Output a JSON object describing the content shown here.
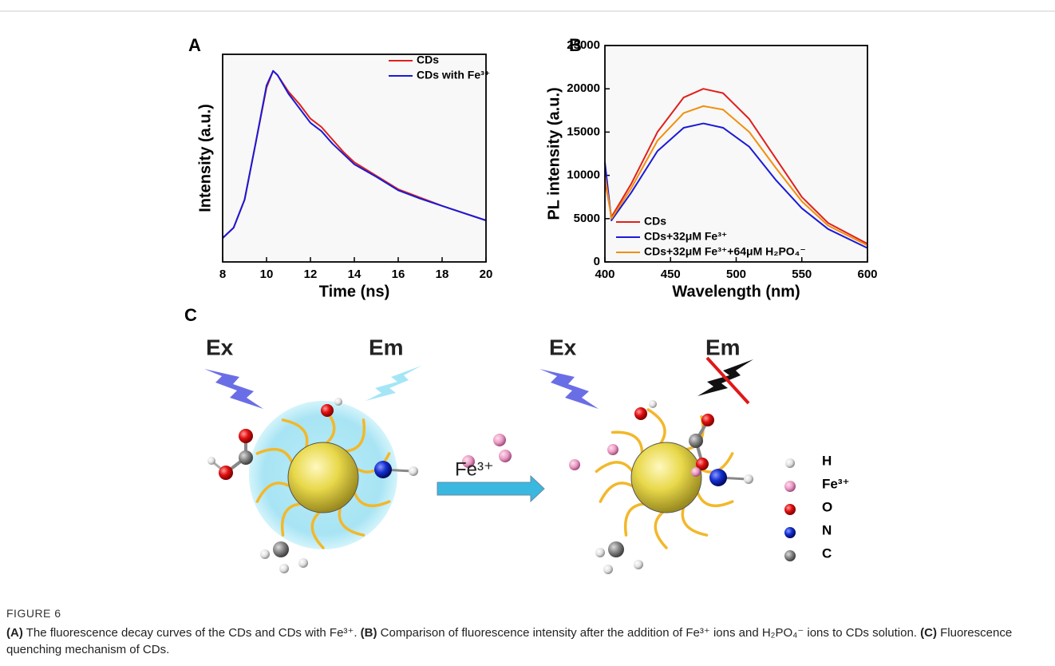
{
  "chart_data": [
    {
      "type": "line",
      "panel": "A",
      "x_label": "Time (ns)",
      "y_label": "Intensity (a.u.)",
      "xlim": [
        8,
        20
      ],
      "xticks": [
        8,
        10,
        12,
        14,
        16,
        18,
        20
      ],
      "ylim": [
        0,
        1
      ],
      "legend": "upper right",
      "x": [
        8,
        8.5,
        9,
        9.5,
        10,
        10.3,
        10.5,
        11,
        11.5,
        12,
        12.5,
        13,
        13.5,
        14,
        15,
        16,
        17,
        18,
        19,
        20
      ],
      "series": [
        {
          "name": "CDs",
          "color": "#e0201b",
          "values": [
            0.115,
            0.165,
            0.3,
            0.57,
            0.84,
            0.92,
            0.9,
            0.82,
            0.76,
            0.69,
            0.65,
            0.59,
            0.53,
            0.48,
            0.415,
            0.35,
            0.31,
            0.27,
            0.235,
            0.2
          ]
        },
        {
          "name": "CDs with Fe³⁺",
          "color": "#1a1ad8",
          "values": [
            0.115,
            0.165,
            0.3,
            0.57,
            0.85,
            0.92,
            0.9,
            0.81,
            0.74,
            0.67,
            0.63,
            0.57,
            0.52,
            0.47,
            0.41,
            0.345,
            0.305,
            0.27,
            0.235,
            0.2
          ]
        }
      ]
    },
    {
      "type": "line",
      "panel": "B",
      "x_label": "Wavelength (nm)",
      "y_label": "PL intensity (a.u.)",
      "xlim": [
        400,
        600
      ],
      "xticks": [
        400,
        450,
        500,
        550,
        600
      ],
      "ylim": [
        0,
        25000
      ],
      "yticks": [
        0,
        5000,
        10000,
        15000,
        20000,
        25000
      ],
      "legend": "lower center",
      "x": [
        400,
        405,
        420,
        440,
        460,
        475,
        490,
        510,
        530,
        550,
        570,
        600
      ],
      "series": [
        {
          "name": "CDs",
          "color": "#e0201b",
          "values": [
            9500,
            5200,
            9000,
            15000,
            19000,
            20000,
            19500,
            16500,
            12000,
            7500,
            4500,
            2100
          ]
        },
        {
          "name": "CDs+32μM Fe³⁺",
          "color": "#1a1ad8",
          "values": [
            11500,
            4800,
            8000,
            12800,
            15500,
            16000,
            15500,
            13300,
            9500,
            6200,
            3800,
            1600
          ]
        },
        {
          "name": "CDs+32μM Fe³⁺+64μM H₂PO₄⁻",
          "color": "#f0900f",
          "values": [
            10000,
            5000,
            8500,
            14000,
            17200,
            18000,
            17600,
            15000,
            10900,
            7000,
            4200,
            1900
          ]
        }
      ]
    }
  ],
  "diagram": {
    "panel": "C",
    "ex_left": "Ex",
    "em_left": "Em",
    "arrow_label": "Fe³⁺",
    "ex_right": "Ex",
    "em_right": "Em",
    "legend": [
      "H",
      "Fe³⁺",
      "O",
      "N",
      "C"
    ]
  },
  "caption": {
    "label": "FIGURE 6",
    "parts": [
      {
        "tag": "(A)",
        "text": "The fluorescence decay curves of the CDs and CDs with Fe³⁺."
      },
      {
        "tag": "(B)",
        "text": "Comparison of fluorescence intensity after the addition of Fe³⁺ ions and H₂PO₄⁻ ions to CDs solution."
      },
      {
        "tag": "(C)",
        "text": "Fluorescence quenching mechanism of CDs."
      }
    ]
  }
}
